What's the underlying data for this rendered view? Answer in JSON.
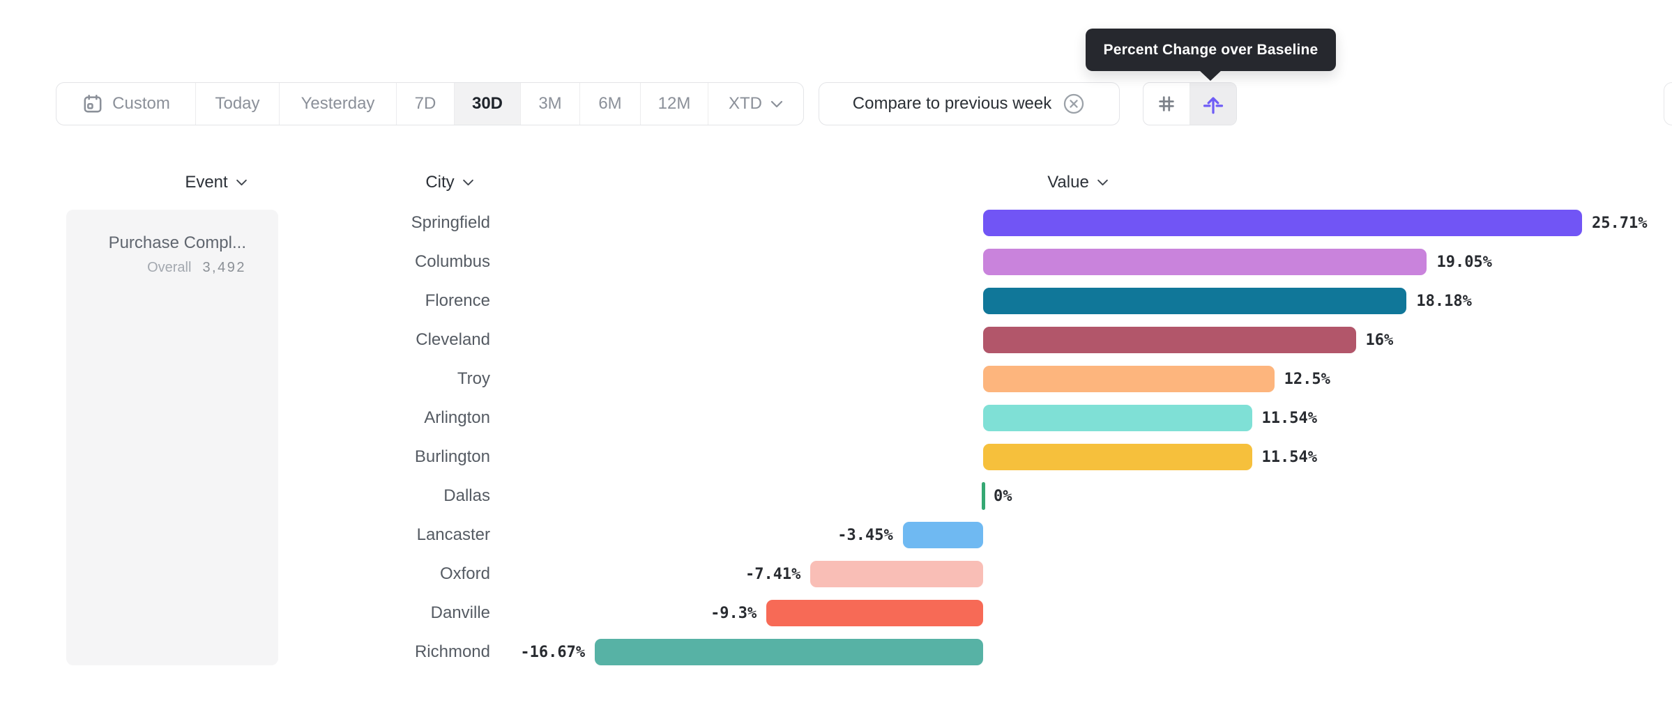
{
  "tooltip": {
    "text": "Percent Change over Baseline"
  },
  "toolbar": {
    "time_ranges": [
      {
        "label": "Custom",
        "has_calendar_icon": true,
        "selected": false
      },
      {
        "label": "Today",
        "selected": false
      },
      {
        "label": "Yesterday",
        "selected": false
      },
      {
        "label": "7D",
        "selected": false
      },
      {
        "label": "30D",
        "selected": true
      },
      {
        "label": "3M",
        "selected": false
      },
      {
        "label": "6M",
        "selected": false
      },
      {
        "label": "12M",
        "selected": false
      },
      {
        "label": "XTD",
        "has_dropdown": true,
        "selected": false
      }
    ],
    "compare_chip": {
      "label": "Compare to previous week",
      "icon": "remove-circle-icon"
    },
    "view_toggle": {
      "options": [
        "absolute-numbers-icon",
        "percent-change-icon"
      ],
      "selected": "percent-change-icon"
    }
  },
  "columns": {
    "event": "Event",
    "city": "City",
    "value": "Value"
  },
  "event_card": {
    "title": "Purchase Compl...",
    "overall_label": "Overall",
    "overall_value": "3,492"
  },
  "chart_data": {
    "type": "bar",
    "orientation": "horizontal",
    "value_unit": "percent_change_over_baseline",
    "baseline": 0,
    "xlim": [
      -16.67,
      25.71
    ],
    "grid": false,
    "rows": [
      {
        "city": "Springfield",
        "value": 25.71,
        "label": "25.71%",
        "color": "#7155f5"
      },
      {
        "city": "Columbus",
        "value": 19.05,
        "label": "19.05%",
        "color": "#c983dc"
      },
      {
        "city": "Florence",
        "value": 18.18,
        "label": "18.18%",
        "color": "#107799"
      },
      {
        "city": "Cleveland",
        "value": 16,
        "label": "16%",
        "color": "#b2566a"
      },
      {
        "city": "Troy",
        "value": 12.5,
        "label": "12.5%",
        "color": "#fdb57d"
      },
      {
        "city": "Arlington",
        "value": 11.54,
        "label": "11.54%",
        "color": "#7fe0d6"
      },
      {
        "city": "Burlington",
        "value": 11.54,
        "label": "11.54%",
        "color": "#f6c03c"
      },
      {
        "city": "Dallas",
        "value": 0,
        "label": "0%",
        "color": "#35a873"
      },
      {
        "city": "Lancaster",
        "value": -3.45,
        "label": "-3.45%",
        "color": "#6fb9f2"
      },
      {
        "city": "Oxford",
        "value": -7.41,
        "label": "-7.41%",
        "color": "#f9beb6"
      },
      {
        "city": "Danville",
        "value": -9.3,
        "label": "-9.3%",
        "color": "#f76a56"
      },
      {
        "city": "Richmond",
        "value": -16.67,
        "label": "-16.67%",
        "color": "#57b2a5"
      }
    ]
  }
}
